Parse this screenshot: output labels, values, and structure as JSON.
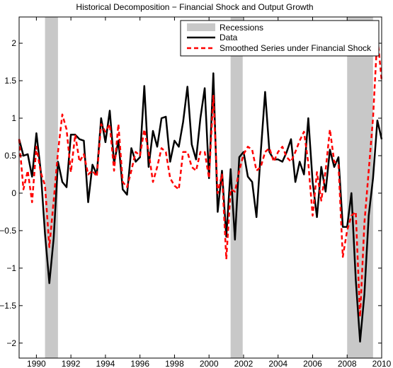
{
  "chart_data": {
    "type": "line",
    "title": "Historical Decomposition − Financial Shock and Output Growth",
    "xlim": [
      1989.0,
      2010.0
    ],
    "ylim": [
      -2.2,
      2.35
    ],
    "x_ticks": [
      1990,
      1992,
      1994,
      1996,
      1998,
      2000,
      2002,
      2004,
      2006,
      2008,
      2010
    ],
    "y_ticks": [
      -2,
      -1.5,
      -1,
      -0.5,
      0,
      0.5,
      1,
      1.5,
      2
    ],
    "x_tick_labels": [
      "1990",
      "1992",
      "1994",
      "1996",
      "1998",
      "2000",
      "2002",
      "2004",
      "2006",
      "2008",
      "2010"
    ],
    "y_tick_labels": [
      "−2",
      "−1.5",
      "−1",
      "−0.5",
      "0",
      "0.5",
      "1",
      "1.5",
      "2"
    ],
    "recessions": [
      [
        1990.5,
        1991.25
      ],
      [
        2001.25,
        2001.95
      ],
      [
        2008.0,
        2009.5
      ]
    ],
    "legend": {
      "position": "top-right",
      "entries": [
        "Recessions",
        "Data",
        "Smoothed Series under Financial Shock"
      ]
    },
    "series": [
      {
        "name": "Data",
        "color": "#000000",
        "style": "solid",
        "x": [
          1989.0,
          1989.25,
          1989.5,
          1989.75,
          1990.0,
          1990.25,
          1990.5,
          1990.75,
          1991.0,
          1991.25,
          1991.5,
          1991.75,
          1992.0,
          1992.25,
          1992.5,
          1992.75,
          1993.0,
          1993.25,
          1993.5,
          1993.75,
          1994.0,
          1994.25,
          1994.5,
          1994.75,
          1995.0,
          1995.25,
          1995.5,
          1995.75,
          1996.0,
          1996.25,
          1996.5,
          1996.75,
          1997.0,
          1997.25,
          1997.5,
          1997.75,
          1998.0,
          1998.25,
          1998.5,
          1998.75,
          1999.0,
          1999.25,
          1999.5,
          1999.75,
          2000.0,
          2000.25,
          2000.5,
          2000.75,
          2001.0,
          2001.25,
          2001.5,
          2001.75,
          2002.0,
          2002.25,
          2002.5,
          2002.75,
          2003.0,
          2003.25,
          2003.5,
          2003.75,
          2004.0,
          2004.25,
          2004.5,
          2004.75,
          2005.0,
          2005.25,
          2005.5,
          2005.75,
          2006.0,
          2006.25,
          2006.5,
          2006.75,
          2007.0,
          2007.25,
          2007.5,
          2007.75,
          2008.0,
          2008.25,
          2008.5,
          2008.75,
          2009.0,
          2009.25,
          2009.5,
          2009.75,
          2010.0
        ],
        "y": [
          0.72,
          0.5,
          0.52,
          0.22,
          0.8,
          0.3,
          -0.55,
          -1.2,
          -0.6,
          0.42,
          0.15,
          0.08,
          0.78,
          0.78,
          0.72,
          0.7,
          -0.12,
          0.38,
          0.25,
          1.0,
          0.68,
          1.1,
          0.4,
          0.7,
          0.05,
          -0.02,
          0.6,
          0.42,
          0.48,
          1.43,
          0.35,
          0.83,
          0.62,
          1.0,
          1.02,
          0.42,
          0.7,
          0.62,
          0.95,
          1.42,
          0.65,
          0.45,
          1.0,
          1.4,
          0.2,
          1.6,
          -0.25,
          0.3,
          -0.58,
          0.32,
          -0.62,
          0.48,
          0.55,
          0.22,
          0.15,
          -0.32,
          0.55,
          1.35,
          0.55,
          0.45,
          0.45,
          0.42,
          0.55,
          0.72,
          0.15,
          0.42,
          0.25,
          1.0,
          0.15,
          -0.32,
          0.35,
          0.02,
          0.58,
          0.35,
          0.48,
          -0.45,
          -0.45,
          0.0,
          -1.15,
          -1.98,
          -1.35,
          -0.3,
          0.2,
          0.97,
          0.72
        ]
      },
      {
        "name": "Smoothed Series under Financial Shock",
        "color": "#ff0000",
        "style": "dashed",
        "x": [
          1989.0,
          1989.25,
          1989.5,
          1989.75,
          1990.0,
          1990.25,
          1990.5,
          1990.75,
          1991.0,
          1991.25,
          1991.5,
          1991.75,
          1992.0,
          1992.25,
          1992.5,
          1992.75,
          1993.0,
          1993.25,
          1993.5,
          1993.75,
          1994.0,
          1994.25,
          1994.5,
          1994.75,
          1995.0,
          1995.25,
          1995.5,
          1995.75,
          1996.0,
          1996.25,
          1996.5,
          1996.75,
          1997.0,
          1997.25,
          1997.5,
          1997.75,
          1998.0,
          1998.25,
          1998.5,
          1998.75,
          1999.0,
          1999.25,
          1999.5,
          1999.75,
          2000.0,
          2000.25,
          2000.5,
          2000.75,
          2001.0,
          2001.25,
          2001.5,
          2001.75,
          2002.0,
          2002.25,
          2002.5,
          2002.75,
          2003.0,
          2003.25,
          2003.5,
          2003.75,
          2004.0,
          2004.25,
          2004.5,
          2004.75,
          2005.0,
          2005.25,
          2005.5,
          2005.75,
          2006.0,
          2006.25,
          2006.5,
          2006.75,
          2007.0,
          2007.25,
          2007.5,
          2007.75,
          2008.0,
          2008.25,
          2008.5,
          2008.75,
          2009.0,
          2009.25,
          2009.5,
          2009.75,
          2010.0
        ],
        "y": [
          0.72,
          0.05,
          0.3,
          -0.12,
          0.62,
          0.28,
          0.1,
          -0.72,
          -0.1,
          0.55,
          1.05,
          0.85,
          0.28,
          0.78,
          0.42,
          0.52,
          0.25,
          0.3,
          0.22,
          0.92,
          0.82,
          0.92,
          0.3,
          0.92,
          0.15,
          0.08,
          0.3,
          0.55,
          0.5,
          0.85,
          0.55,
          0.15,
          0.35,
          0.6,
          0.55,
          0.2,
          0.1,
          0.05,
          0.55,
          0.55,
          0.35,
          0.3,
          0.55,
          0.55,
          0.2,
          1.3,
          0.0,
          0.25,
          -0.88,
          0.05,
          0.02,
          0.3,
          0.52,
          0.62,
          0.58,
          0.3,
          0.35,
          0.55,
          0.6,
          0.42,
          0.55,
          0.62,
          0.48,
          0.42,
          0.55,
          0.7,
          0.82,
          0.4,
          -0.3,
          0.28,
          -0.1,
          0.3,
          0.85,
          0.42,
          0.38,
          -0.85,
          -0.5,
          -0.3,
          -0.25,
          -1.65,
          -0.4,
          0.3,
          1.0,
          2.1,
          1.5
        ]
      }
    ]
  }
}
